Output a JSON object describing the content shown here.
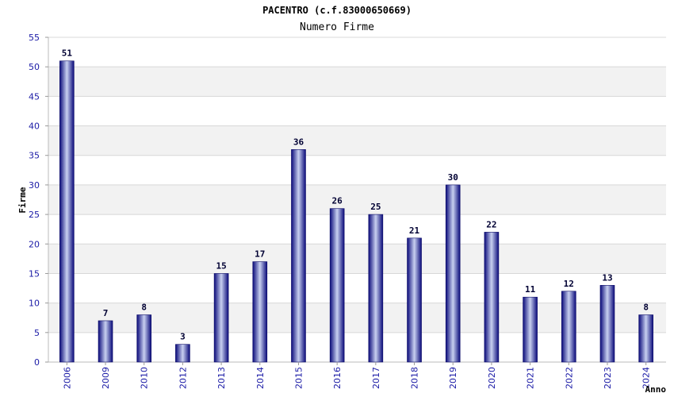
{
  "chart_data": {
    "type": "bar",
    "title": "PACENTRO (c.f.83000650669)",
    "subtitle": "Numero Firme",
    "xlabel": "Anno",
    "ylabel": "Firme",
    "categories": [
      "2006",
      "2009",
      "2010",
      "2012",
      "2013",
      "2014",
      "2015",
      "2016",
      "2017",
      "2018",
      "2019",
      "2020",
      "2021",
      "2022",
      "2023",
      "2024"
    ],
    "values": [
      51,
      7,
      8,
      3,
      15,
      17,
      36,
      26,
      25,
      21,
      30,
      22,
      11,
      12,
      13,
      8
    ],
    "ylim": [
      0,
      55
    ],
    "yticks": [
      "0",
      "5",
      "10",
      "15",
      "20",
      "25",
      "30",
      "35",
      "40",
      "45",
      "50",
      "55"
    ],
    "grid": true,
    "legend": "none",
    "colors": {
      "bar_dark": "#0a0a7a",
      "bar_light": "#c8d0f0",
      "band": "#f2f2f2",
      "grid": "#d8d8d8",
      "tick_text": "#1a1aa6"
    }
  }
}
